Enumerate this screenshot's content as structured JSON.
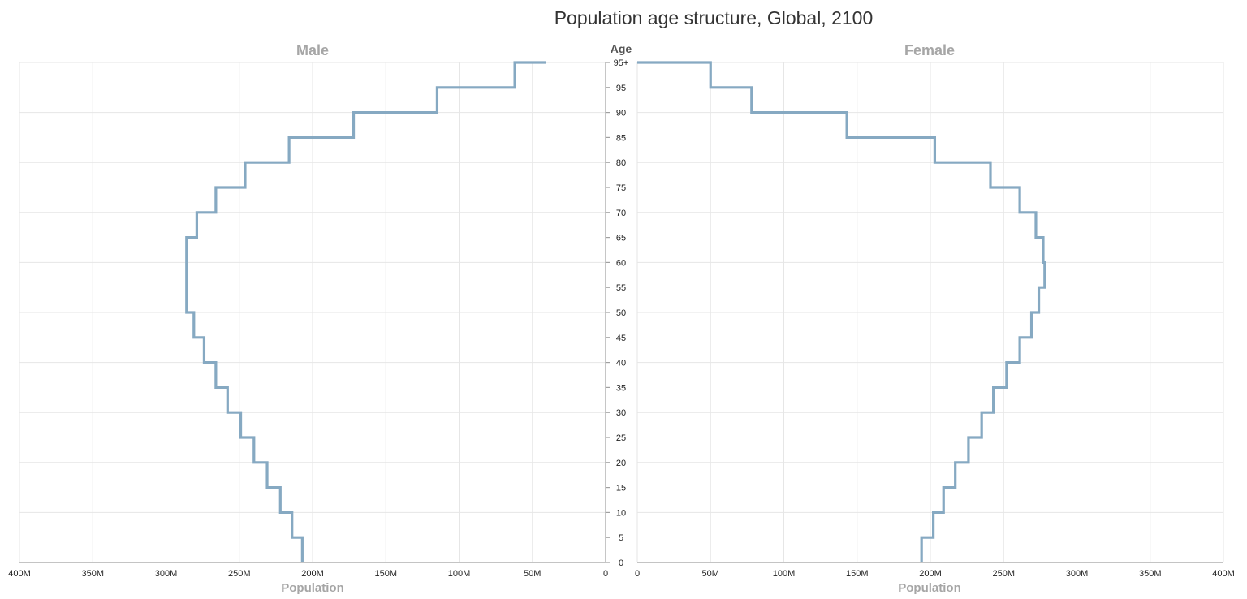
{
  "chart_data": {
    "type": "line",
    "title": "Population age structure, Global, 2100",
    "panels": {
      "male": {
        "title": "Male"
      },
      "female": {
        "title": "Female"
      }
    },
    "age_axis_label": "Age",
    "xlabel": "Population",
    "xlim": [
      0,
      400000000
    ],
    "x_ticks": [
      0,
      50000000,
      100000000,
      150000000,
      200000000,
      250000000,
      300000000,
      350000000,
      400000000
    ],
    "x_tick_labels": [
      "0",
      "50M",
      "100M",
      "150M",
      "200M",
      "250M",
      "300M",
      "350M",
      "400M"
    ],
    "age_ticks": [
      0,
      5,
      10,
      15,
      20,
      25,
      30,
      35,
      40,
      45,
      50,
      55,
      60,
      65,
      70,
      75,
      80,
      85,
      90,
      95,
      100
    ],
    "age_tick_labels": [
      "0",
      "5",
      "10",
      "15",
      "20",
      "25",
      "30",
      "35",
      "40",
      "45",
      "50",
      "55",
      "60",
      "65",
      "70",
      "75",
      "80",
      "85",
      "90",
      "95",
      "95+"
    ],
    "age_groups": [
      "0-4",
      "5-9",
      "10-14",
      "15-19",
      "20-24",
      "25-29",
      "30-34",
      "35-39",
      "40-44",
      "45-49",
      "50-54",
      "55-59",
      "60-64",
      "65-69",
      "70-74",
      "75-79",
      "80-84",
      "85-89",
      "90-94",
      "95+"
    ],
    "series": [
      {
        "name": "Male",
        "color": "#86a9c2",
        "values": [
          207000000,
          214000000,
          222000000,
          231000000,
          240000000,
          249000000,
          258000000,
          266000000,
          274000000,
          281000000,
          286000000,
          286000000,
          286000000,
          279000000,
          266000000,
          246000000,
          216000000,
          172000000,
          115000000,
          62000000,
          41000000
        ]
      },
      {
        "name": "Female",
        "color": "#86a9c2",
        "values": [
          194000000,
          202000000,
          209000000,
          217000000,
          226000000,
          235000000,
          243000000,
          252000000,
          261000000,
          269000000,
          274000000,
          278000000,
          277000000,
          272000000,
          261000000,
          241000000,
          203000000,
          143000000,
          78000000,
          50000000,
          0
        ]
      }
    ]
  }
}
